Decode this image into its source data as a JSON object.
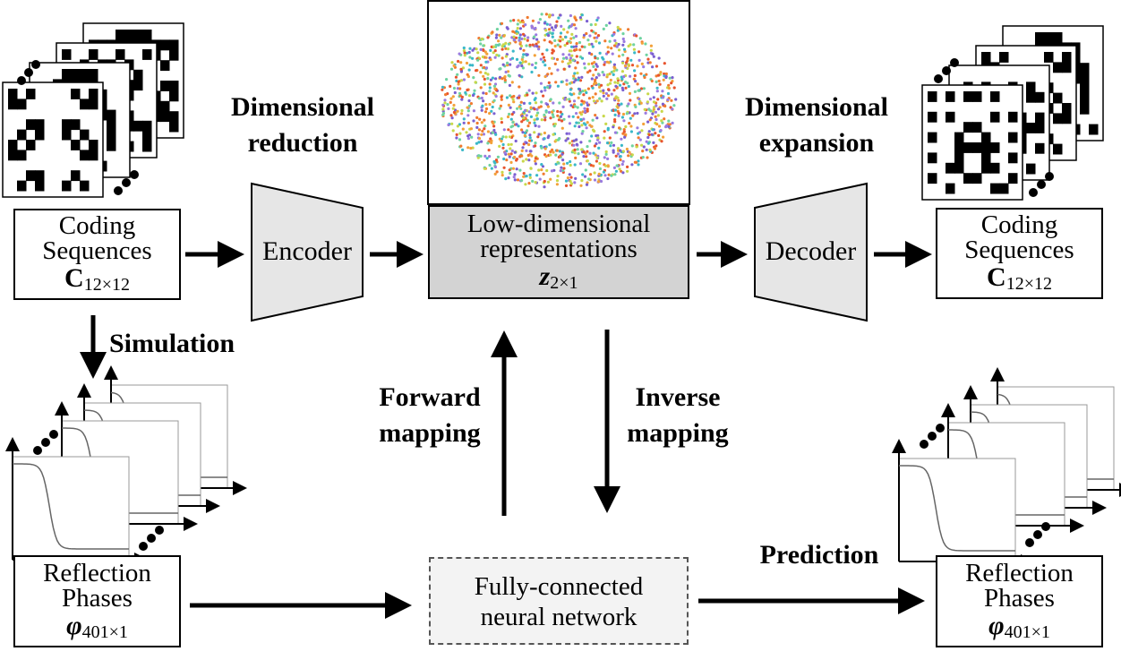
{
  "boxes": {
    "coding_left": {
      "line1": "Coding",
      "line2": "Sequences",
      "symbol": "C",
      "subscript": "12×12"
    },
    "coding_right": {
      "line1": "Coding",
      "line2": "Sequences",
      "symbol": "C",
      "subscript": "12×12"
    },
    "latent": {
      "line1": "Low-dimensional",
      "line2": "representations",
      "symbol": "z",
      "subscript": "2×1"
    },
    "phase_left": {
      "line1": "Reflection",
      "line2": "Phases",
      "symbol": "φ",
      "subscript": "401×1"
    },
    "phase_right": {
      "line1": "Reflection",
      "line2": "Phases",
      "symbol": "φ",
      "subscript": "401×1"
    },
    "fcnn": {
      "line1": "Fully-connected",
      "line2": "neural network"
    }
  },
  "blocks": {
    "encoder": "Encoder",
    "decoder": "Decoder"
  },
  "labels": {
    "dim_reduction_1": "Dimensional",
    "dim_reduction_2": "reduction",
    "dim_expansion_1": "Dimensional",
    "dim_expansion_2": "expansion",
    "simulation": "Simulation",
    "forward_1": "Forward",
    "forward_2": "mapping",
    "inverse_1": "Inverse",
    "inverse_2": "mapping",
    "prediction": "Prediction"
  },
  "colors": {
    "block_fill": "#e6e6e6",
    "latent_fill": "#d3d3d3",
    "fcnn_fill": "#f3f3f3",
    "scatter_palette": [
      "#e8542e",
      "#f07a2f",
      "#7a5fd0",
      "#9a7be0",
      "#3ab8c8",
      "#6fd3a0",
      "#c8d84a",
      "#f3a13a"
    ]
  }
}
